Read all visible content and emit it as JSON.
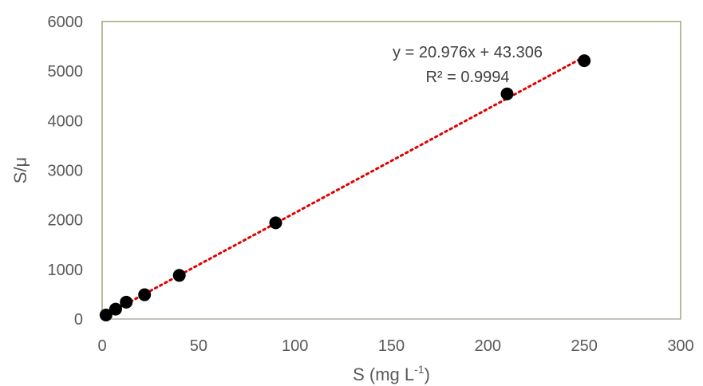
{
  "chart_data": {
    "type": "scatter",
    "xlabel": "S (mg L",
    "xlabel_sup": "-1",
    "xlabel_end": ")",
    "ylabel": "S/μ",
    "xlim": [
      0,
      300
    ],
    "ylim": [
      0,
      6000
    ],
    "x_ticks": [
      "0",
      "50",
      "100",
      "150",
      "200",
      "250",
      "300"
    ],
    "y_ticks": [
      "0",
      "1000",
      "2000",
      "3000",
      "4000",
      "5000",
      "6000"
    ],
    "grid": false,
    "points": [
      {
        "x": 2,
        "y": 80
      },
      {
        "x": 7,
        "y": 200
      },
      {
        "x": 12.5,
        "y": 340
      },
      {
        "x": 22,
        "y": 490
      },
      {
        "x": 40,
        "y": 880
      },
      {
        "x": 90,
        "y": 1940
      },
      {
        "x": 210,
        "y": 4540
      },
      {
        "x": 250,
        "y": 5210
      }
    ],
    "trendline": {
      "type": "linear",
      "slope": 20.976,
      "intercept": 43.306,
      "x_range": [
        2,
        250
      ],
      "equation_label": "y = 20.976x + 43.306",
      "r2_label": "R² = 0.9994",
      "color": "#e00000"
    },
    "colors": {
      "point": "#000000",
      "plot_border": "#a6a67a",
      "axis": "#bfbfbf",
      "text": "#595959"
    }
  }
}
